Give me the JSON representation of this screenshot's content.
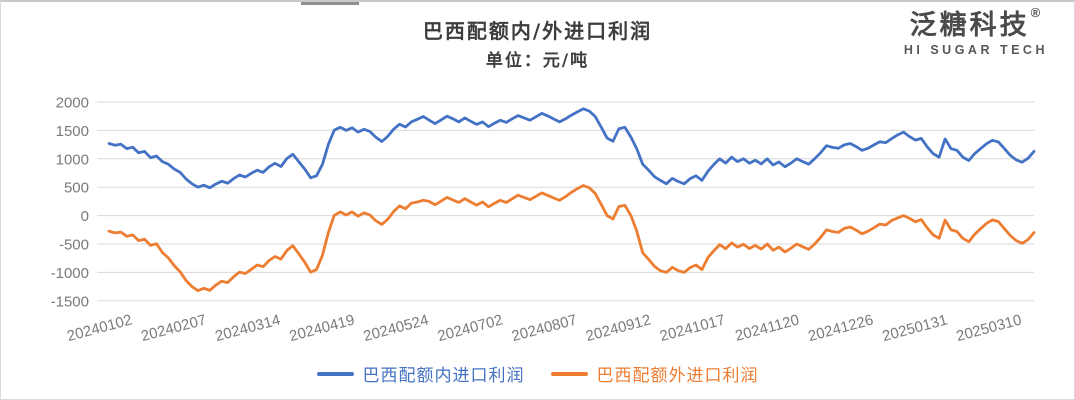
{
  "header": {
    "title": "巴西配额内/外进口利润",
    "subtitle": "单位：元/吨"
  },
  "logo": {
    "brand": "泛糖科技",
    "registered": "®",
    "tagline": "HI SUGAR TECH"
  },
  "colors": {
    "series_in_quota": "#4472C4",
    "series_out_quota": "#ED7D31",
    "gridline": "#d9d9d9",
    "axis_text": "#7a7a7a",
    "title_text": "#3d3d3d"
  },
  "chart_data": {
    "type": "line",
    "title": "巴西配额内/外进口利润",
    "unit_label": "单位：元/吨",
    "grid": "horizontal-only",
    "legend_position": "bottom-center",
    "y_ticks": [
      2000,
      1500,
      1000,
      500,
      0,
      -500,
      -1000,
      -1500
    ],
    "ylim": [
      -1500,
      2000
    ],
    "x_tick_labels": [
      "20240102",
      "20240207",
      "20240314",
      "20240419",
      "20240524",
      "20240702",
      "20240807",
      "20240912",
      "20241017",
      "20241120",
      "20241226",
      "20250131",
      "20250310"
    ],
    "x_tick_point_index": [
      0,
      12.5,
      25,
      37.5,
      50,
      62.5,
      75,
      87.5,
      100,
      112.5,
      125,
      137.5,
      150
    ],
    "n_points": 157,
    "x_axis_note": "consecutive trading days from 20240102, sampled every 2 days",
    "series": [
      {
        "name": "巴西配额内进口利润",
        "color": "#4472C4",
        "values": [
          1270,
          1240,
          1255,
          1180,
          1205,
          1105,
          1130,
          1020,
          1050,
          950,
          905,
          820,
          760,
          645,
          560,
          500,
          535,
          490,
          555,
          605,
          570,
          650,
          715,
          680,
          745,
          800,
          760,
          860,
          920,
          865,
          1005,
          1080,
          950,
          820,
          665,
          700,
          905,
          1255,
          1505,
          1555,
          1500,
          1545,
          1470,
          1520,
          1480,
          1380,
          1305,
          1395,
          1520,
          1610,
          1560,
          1650,
          1695,
          1745,
          1680,
          1620,
          1685,
          1750,
          1705,
          1650,
          1720,
          1660,
          1605,
          1650,
          1565,
          1625,
          1680,
          1640,
          1705,
          1760,
          1720,
          1680,
          1740,
          1800,
          1755,
          1700,
          1650,
          1705,
          1770,
          1825,
          1880,
          1840,
          1745,
          1560,
          1365,
          1310,
          1530,
          1555,
          1385,
          1180,
          905,
          800,
          685,
          620,
          560,
          655,
          600,
          560,
          650,
          700,
          620,
          780,
          900,
          1000,
          925,
          1030,
          950,
          1000,
          920,
          975,
          910,
          1000,
          890,
          945,
          860,
          925,
          1000,
          950,
          905,
          1000,
          1105,
          1230,
          1200,
          1185,
          1245,
          1270,
          1215,
          1150,
          1185,
          1245,
          1300,
          1285,
          1355,
          1420,
          1470,
          1390,
          1330,
          1360,
          1210,
          1090,
          1030,
          1350,
          1180,
          1150,
          1030,
          970,
          1090,
          1180,
          1265,
          1325,
          1295,
          1180,
          1060,
          980,
          940,
          1010,
          1130
        ]
      },
      {
        "name": "巴西配额外进口利润",
        "color": "#ED7D31",
        "values": [
          -275,
          -305,
          -290,
          -365,
          -340,
          -440,
          -415,
          -525,
          -495,
          -650,
          -745,
          -880,
          -990,
          -1145,
          -1250,
          -1320,
          -1280,
          -1315,
          -1225,
          -1155,
          -1180,
          -1080,
          -995,
          -1020,
          -945,
          -870,
          -900,
          -790,
          -720,
          -765,
          -615,
          -530,
          -670,
          -820,
          -995,
          -950,
          -695,
          -295,
          5,
          65,
          10,
          65,
          -10,
          50,
          10,
          -90,
          -155,
          -65,
          70,
          170,
          120,
          220,
          240,
          270,
          250,
          190,
          255,
          320,
          275,
          230,
          300,
          240,
          185,
          240,
          155,
          215,
          270,
          230,
          295,
          360,
          320,
          280,
          340,
          400,
          355,
          310,
          270,
          335,
          410,
          475,
          530,
          490,
          390,
          200,
          0,
          -60,
          160,
          180,
          5,
          -270,
          -655,
          -770,
          -895,
          -970,
          -1000,
          -910,
          -970,
          -1000,
          -915,
          -870,
          -950,
          -740,
          -620,
          -510,
          -585,
          -480,
          -555,
          -505,
          -580,
          -525,
          -590,
          -500,
          -610,
          -555,
          -640,
          -575,
          -500,
          -550,
          -595,
          -500,
          -385,
          -250,
          -280,
          -295,
          -225,
          -200,
          -255,
          -320,
          -275,
          -215,
          -150,
          -165,
          -85,
          -40,
          0,
          -50,
          -110,
          -70,
          -220,
          -340,
          -400,
          -80,
          -250,
          -280,
          -400,
          -460,
          -330,
          -230,
          -135,
          -75,
          -105,
          -230,
          -350,
          -440,
          -490,
          -420,
          -300
        ]
      }
    ]
  },
  "legend": {
    "items": [
      {
        "label": "巴西配额内进口利润",
        "color": "#4472C4"
      },
      {
        "label": "巴西配额外进口利润",
        "color": "#ED7D31"
      }
    ]
  }
}
